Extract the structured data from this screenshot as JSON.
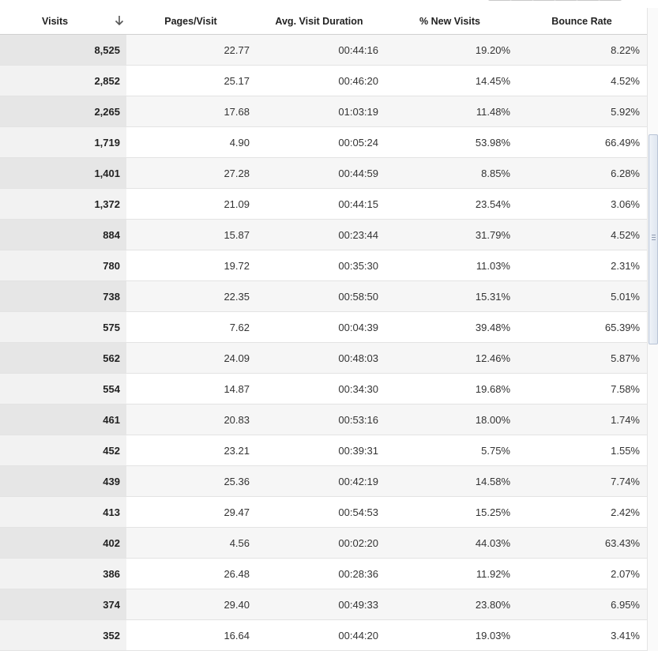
{
  "table": {
    "columns": [
      "Visits",
      "Pages/Visit",
      "Avg. Visit Duration",
      "% New Visits",
      "Bounce Rate"
    ],
    "sort": {
      "column": "Visits",
      "direction": "descending",
      "icon": "arrow-down-icon"
    },
    "rows": [
      {
        "visits": "8,525",
        "pages": "22.77",
        "duration": "00:44:16",
        "new_visits": "19.20%",
        "bounce": "8.22%"
      },
      {
        "visits": "2,852",
        "pages": "25.17",
        "duration": "00:46:20",
        "new_visits": "14.45%",
        "bounce": "4.52%"
      },
      {
        "visits": "2,265",
        "pages": "17.68",
        "duration": "01:03:19",
        "new_visits": "11.48%",
        "bounce": "5.92%"
      },
      {
        "visits": "1,719",
        "pages": "4.90",
        "duration": "00:05:24",
        "new_visits": "53.98%",
        "bounce": "66.49%"
      },
      {
        "visits": "1,401",
        "pages": "27.28",
        "duration": "00:44:59",
        "new_visits": "8.85%",
        "bounce": "6.28%"
      },
      {
        "visits": "1,372",
        "pages": "21.09",
        "duration": "00:44:15",
        "new_visits": "23.54%",
        "bounce": "3.06%"
      },
      {
        "visits": "884",
        "pages": "15.87",
        "duration": "00:23:44",
        "new_visits": "31.79%",
        "bounce": "4.52%"
      },
      {
        "visits": "780",
        "pages": "19.72",
        "duration": "00:35:30",
        "new_visits": "11.03%",
        "bounce": "2.31%"
      },
      {
        "visits": "738",
        "pages": "22.35",
        "duration": "00:58:50",
        "new_visits": "15.31%",
        "bounce": "5.01%"
      },
      {
        "visits": "575",
        "pages": "7.62",
        "duration": "00:04:39",
        "new_visits": "39.48%",
        "bounce": "65.39%"
      },
      {
        "visits": "562",
        "pages": "24.09",
        "duration": "00:48:03",
        "new_visits": "12.46%",
        "bounce": "5.87%"
      },
      {
        "visits": "554",
        "pages": "14.87",
        "duration": "00:34:30",
        "new_visits": "19.68%",
        "bounce": "7.58%"
      },
      {
        "visits": "461",
        "pages": "20.83",
        "duration": "00:53:16",
        "new_visits": "18.00%",
        "bounce": "1.74%"
      },
      {
        "visits": "452",
        "pages": "23.21",
        "duration": "00:39:31",
        "new_visits": "5.75%",
        "bounce": "1.55%"
      },
      {
        "visits": "439",
        "pages": "25.36",
        "duration": "00:42:19",
        "new_visits": "14.58%",
        "bounce": "7.74%"
      },
      {
        "visits": "413",
        "pages": "29.47",
        "duration": "00:54:53",
        "new_visits": "15.25%",
        "bounce": "2.42%"
      },
      {
        "visits": "402",
        "pages": "4.56",
        "duration": "00:02:20",
        "new_visits": "44.03%",
        "bounce": "63.43%"
      },
      {
        "visits": "386",
        "pages": "26.48",
        "duration": "00:28:36",
        "new_visits": "11.92%",
        "bounce": "2.07%"
      },
      {
        "visits": "374",
        "pages": "29.40",
        "duration": "00:49:33",
        "new_visits": "23.80%",
        "bounce": "6.95%"
      },
      {
        "visits": "352",
        "pages": "16.64",
        "duration": "00:44:20",
        "new_visits": "19.03%",
        "bounce": "3.41%"
      }
    ]
  },
  "colors": {
    "visits_column_odd": "#e6e6e6",
    "visits_column_even": "#f2f2f2",
    "row_odd": "#f6f6f6",
    "row_even": "#ffffff"
  }
}
